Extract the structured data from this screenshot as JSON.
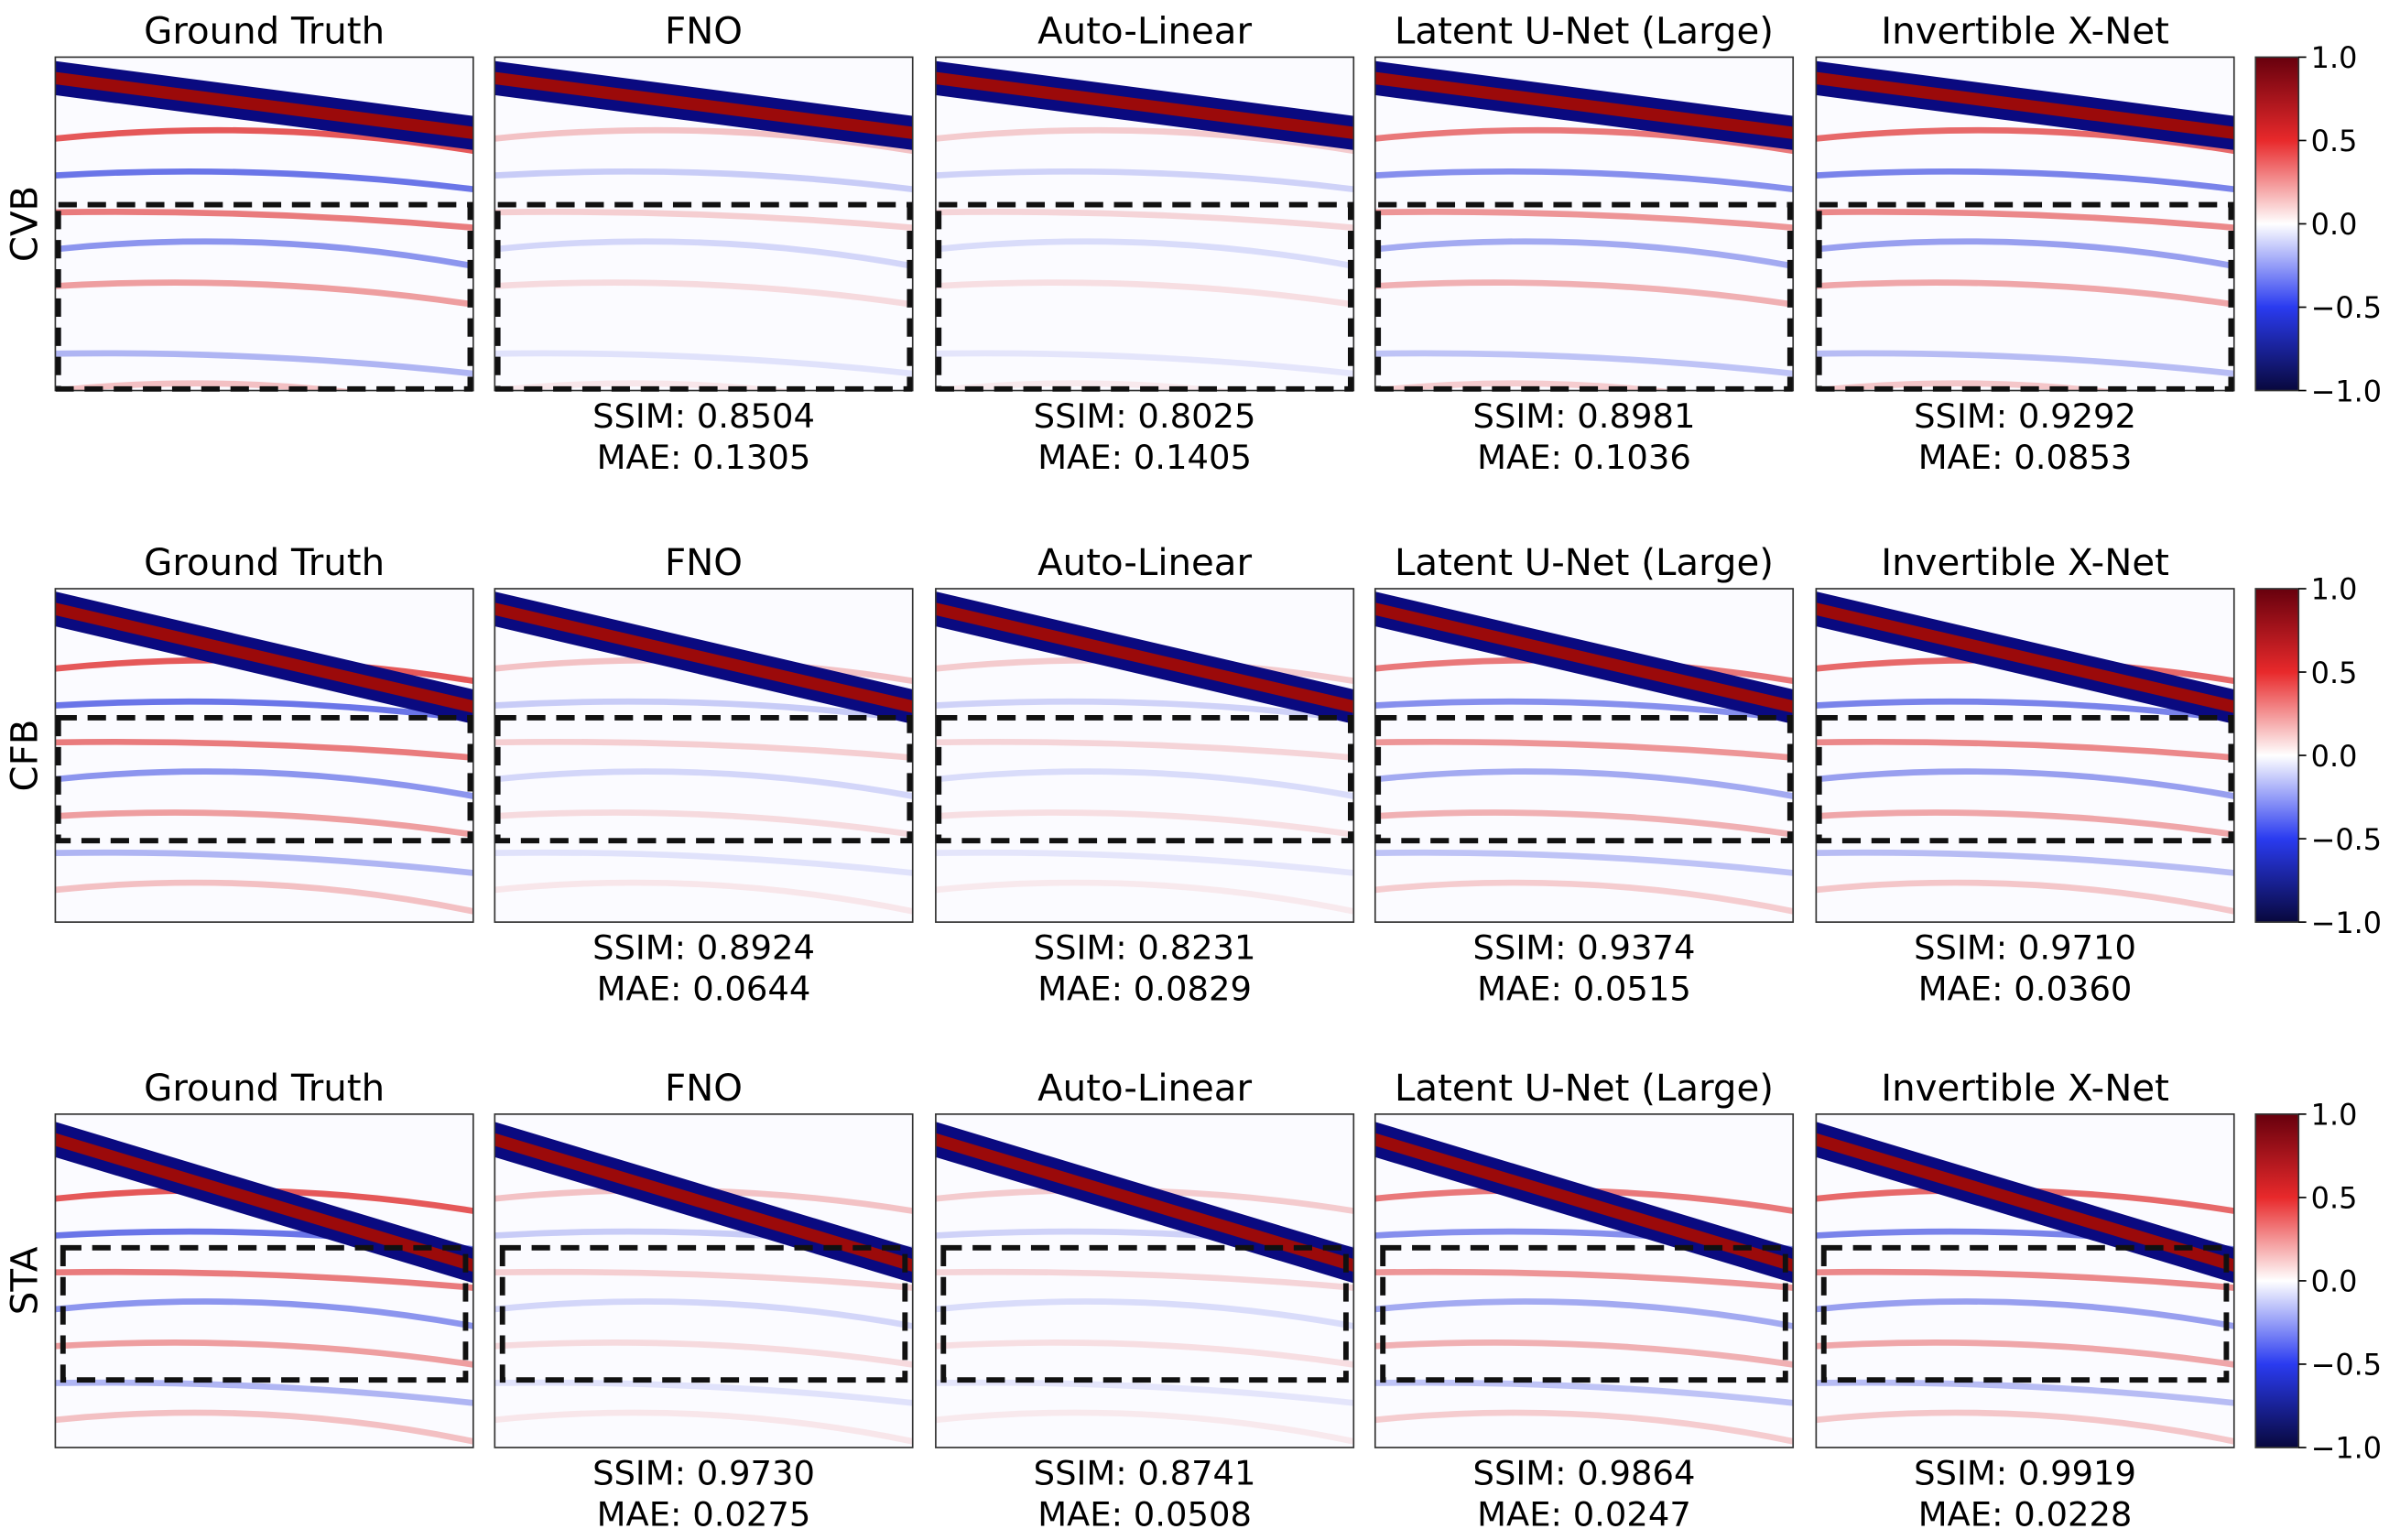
{
  "rows": [
    {
      "label": "CVB",
      "panels": [
        {
          "title": "Ground Truth"
        },
        {
          "title": "FNO",
          "ssim": "SSIM: 0.8504",
          "mae": "MAE: 0.1305"
        },
        {
          "title": "Auto-Linear",
          "ssim": "SSIM: 0.8025",
          "mae": "MAE: 0.1405"
        },
        {
          "title": "Latent U-Net (Large)",
          "ssim": "SSIM: 0.8981",
          "mae": "MAE: 0.1036"
        },
        {
          "title": "Invertible X-Net",
          "ssim": "SSIM: 0.9292",
          "mae": "MAE: 0.0853"
        }
      ]
    },
    {
      "label": "CFB",
      "panels": [
        {
          "title": "Ground Truth"
        },
        {
          "title": "FNO",
          "ssim": "SSIM: 0.8924",
          "mae": "MAE: 0.0644"
        },
        {
          "title": "Auto-Linear",
          "ssim": "SSIM: 0.8231",
          "mae": "MAE: 0.0829"
        },
        {
          "title": "Latent U-Net (Large)",
          "ssim": "SSIM: 0.9374",
          "mae": "MAE: 0.0515"
        },
        {
          "title": "Invertible X-Net",
          "ssim": "SSIM: 0.9710",
          "mae": "MAE: 0.0360"
        }
      ]
    },
    {
      "label": "STA",
      "panels": [
        {
          "title": "Ground Truth"
        },
        {
          "title": "FNO",
          "ssim": "SSIM: 0.9730",
          "mae": "MAE: 0.0275"
        },
        {
          "title": "Auto-Linear",
          "ssim": "SSIM: 0.8741",
          "mae": "MAE: 0.0508"
        },
        {
          "title": "Latent U-Net (Large)",
          "ssim": "SSIM: 0.9864",
          "mae": "MAE: 0.0247"
        },
        {
          "title": "Invertible X-Net",
          "ssim": "SSIM: 0.9919",
          "mae": "MAE: 0.0228"
        }
      ]
    }
  ],
  "colorbar": {
    "range": [
      -1,
      1
    ],
    "ticks": [
      {
        "value": 1,
        "label": "1.0"
      },
      {
        "value": 0.5,
        "label": "0.5"
      },
      {
        "value": 0,
        "label": "0.0"
      },
      {
        "value": -0.5,
        "label": "−0.5"
      },
      {
        "value": -1,
        "label": "−1.0"
      }
    ]
  }
}
